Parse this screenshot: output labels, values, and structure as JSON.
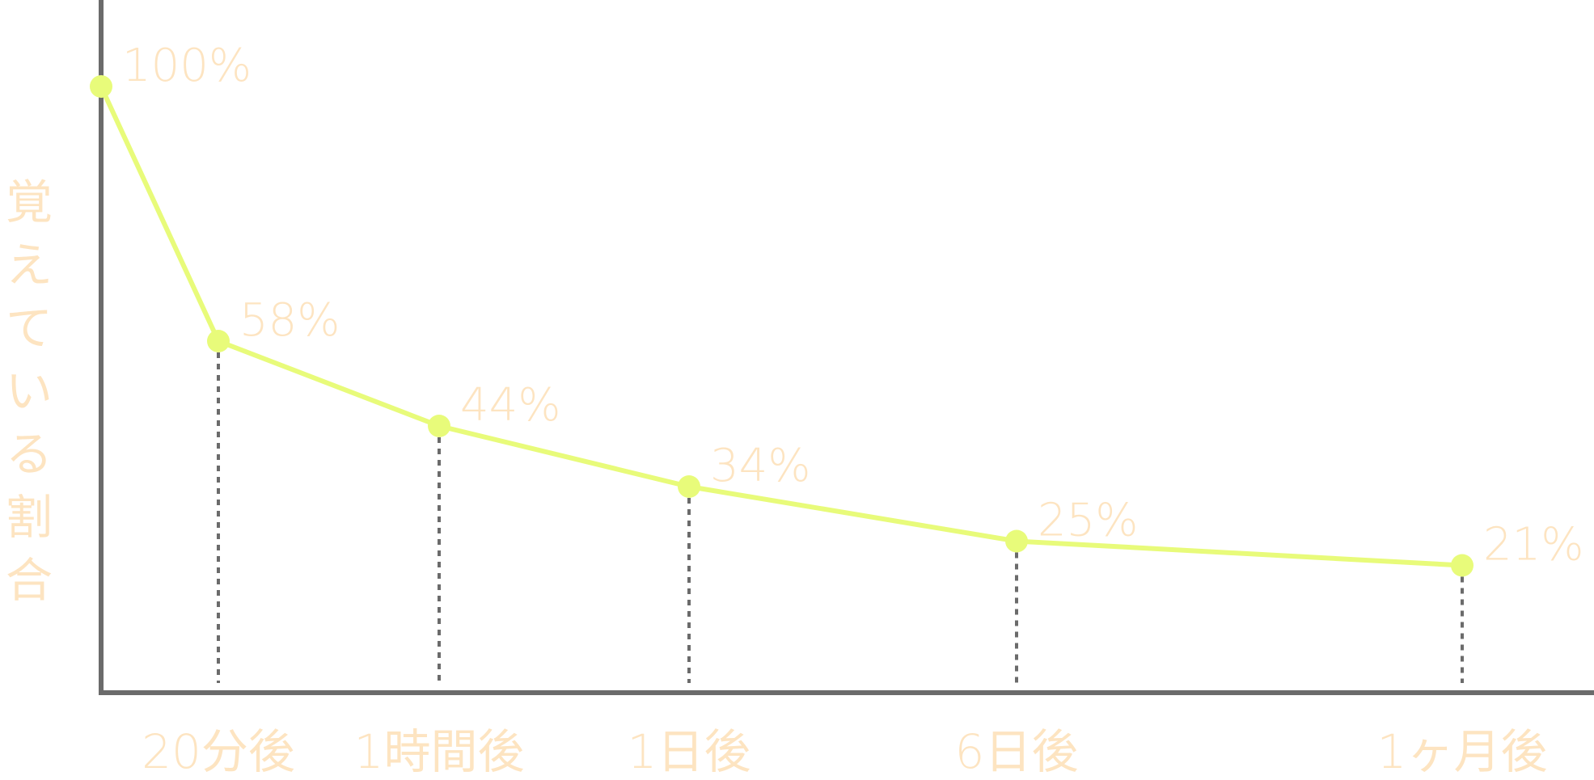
{
  "colors": {
    "line": "#e8fb7a",
    "point": "#e8fb7a",
    "label": "#fde4c1",
    "axis": "#6b6b6b",
    "dropline": "#6b6b6b",
    "background": "#ffffff"
  },
  "chart_data": {
    "type": "line",
    "title": "",
    "ylabel": "覚えている割合",
    "xlabel": "",
    "ylim": [
      0,
      100
    ],
    "grid": false,
    "x_tick_labels": [
      "20分後",
      "1時間後",
      "1日後",
      "6日後",
      "1ヶ月後"
    ],
    "points": [
      {
        "value": 100,
        "label": "100%"
      },
      {
        "value": 58,
        "label": "58%",
        "tick": "20分後"
      },
      {
        "value": 44,
        "label": "44%",
        "tick": "1時間後"
      },
      {
        "value": 34,
        "label": "34%",
        "tick": "1日後"
      },
      {
        "value": 25,
        "label": "25%",
        "tick": "6日後"
      },
      {
        "value": 21,
        "label": "21%",
        "tick": "1ヶ月後"
      }
    ]
  }
}
